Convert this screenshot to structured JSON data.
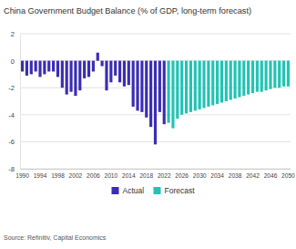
{
  "chart_data": {
    "type": "bar",
    "title": "China Government Budget Balance (% of GDP, long-term forecast)",
    "annotations": [
      "Source: Refinitiv, Capital Economics"
    ],
    "categories": [
      "1990",
      null,
      null,
      null,
      "1994",
      null,
      null,
      null,
      "1998",
      null,
      null,
      null,
      "2002",
      null,
      null,
      null,
      "2006",
      null,
      null,
      null,
      "2010",
      null,
      null,
      null,
      "2014",
      null,
      null,
      null,
      "2018",
      null,
      null,
      null,
      "2022",
      null,
      null,
      null,
      "2026",
      null,
      null,
      null,
      "2030",
      null,
      null,
      null,
      "2034",
      null,
      null,
      null,
      "2038",
      null,
      null,
      null,
      "2042",
      null,
      null,
      null,
      "2046",
      null,
      null,
      null,
      "2050"
    ],
    "series": [
      {
        "name": "Actual",
        "color": "#3b2db3",
        "values": [
          -0.8,
          -1.1,
          -1.0,
          -0.8,
          -1.2,
          -1.0,
          -0.8,
          -0.8,
          -1.2,
          -2.0,
          -2.5,
          -2.3,
          -2.6,
          -2.2,
          -1.3,
          -1.2,
          -0.8,
          0.6,
          -0.4,
          -2.2,
          -1.6,
          -1.1,
          -1.6,
          -1.9,
          -1.8,
          -3.4,
          -3.7,
          -3.8,
          -4.2,
          -4.9,
          -6.2,
          -3.8,
          -4.7,
          null,
          null,
          null,
          null,
          null,
          null,
          null,
          null,
          null,
          null,
          null,
          null,
          null,
          null,
          null,
          null,
          null,
          null,
          null,
          null,
          null,
          null,
          null,
          null,
          null,
          null,
          null,
          null
        ]
      },
      {
        "name": "Forecast",
        "color": "#22c3b3",
        "values": [
          null,
          null,
          null,
          null,
          null,
          null,
          null,
          null,
          null,
          null,
          null,
          null,
          null,
          null,
          null,
          null,
          null,
          null,
          null,
          null,
          null,
          null,
          null,
          null,
          null,
          null,
          null,
          null,
          null,
          null,
          null,
          null,
          null,
          -4.6,
          -5.0,
          -4.3,
          -4.0,
          -3.9,
          -3.8,
          -3.7,
          -3.6,
          -3.5,
          -3.4,
          -3.3,
          -3.2,
          -3.1,
          -3.0,
          -2.9,
          -2.8,
          -2.7,
          -2.6,
          -2.5,
          -2.4,
          -2.3,
          -2.3,
          -2.2,
          -2.1,
          -2.0,
          -2.0,
          -1.9,
          -1.9
        ]
      }
    ],
    "ylim": [
      -8,
      2
    ],
    "yticks": [
      -8,
      -6,
      -4,
      -2,
      0,
      2
    ],
    "grid": true,
    "legend": "bottom"
  }
}
